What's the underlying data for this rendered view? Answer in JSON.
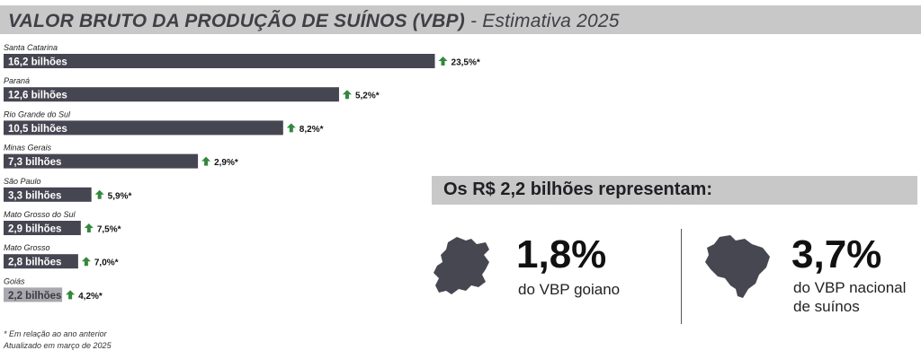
{
  "title": {
    "main": "VALOR BRUTO DA PRODUÇÃO DE SUÍNOS (VBP)",
    "sub": " - Estimativa 2025"
  },
  "colors": {
    "bar": "#464653",
    "highlight_bar": "#a8a8ae",
    "arrow": "#2e8b3a",
    "banner": "#c9c8c8"
  },
  "chart_data": {
    "type": "bar",
    "orientation": "horizontal",
    "unit": "bilhões (R$)",
    "categories": [
      "Santa Catarina",
      "Paraná",
      "Rio Grande do Sul",
      "Minas Gerais",
      "São Paulo",
      "Mato Grosso do Sul",
      "Mato Grosso",
      "Goiás"
    ],
    "values": [
      16.2,
      12.6,
      10.5,
      7.3,
      3.3,
      2.9,
      2.8,
      2.2
    ],
    "value_labels": [
      "16,2 bilhões",
      "12,6 bilhões",
      "10,5 bilhões",
      "7,3 bilhões",
      "3,3 bilhões",
      "2,9 bilhões",
      "2,8 bilhões",
      "2,2 bilhões"
    ],
    "changes": [
      "23,5%*",
      "5,2%*",
      "8,2%*",
      "2,9%*",
      "5,9%*",
      "7,5%*",
      "7,0%*",
      "4,2%*"
    ],
    "highlight": "Goiás",
    "grid": false,
    "legend": "none"
  },
  "footnotes": [
    "* Em relação ao ano anterior",
    "Atualizado em março de 2025"
  ],
  "represent": {
    "heading": "Os R$ 2,2 bilhões representam:",
    "items": [
      {
        "icon": "goias-map-icon",
        "percent": "1,8%",
        "desc_lines": [
          "do VBP goiano"
        ]
      },
      {
        "icon": "brazil-map-icon",
        "percent": "3,7%",
        "desc_lines": [
          "do VBP nacional",
          "de suínos"
        ]
      }
    ]
  }
}
